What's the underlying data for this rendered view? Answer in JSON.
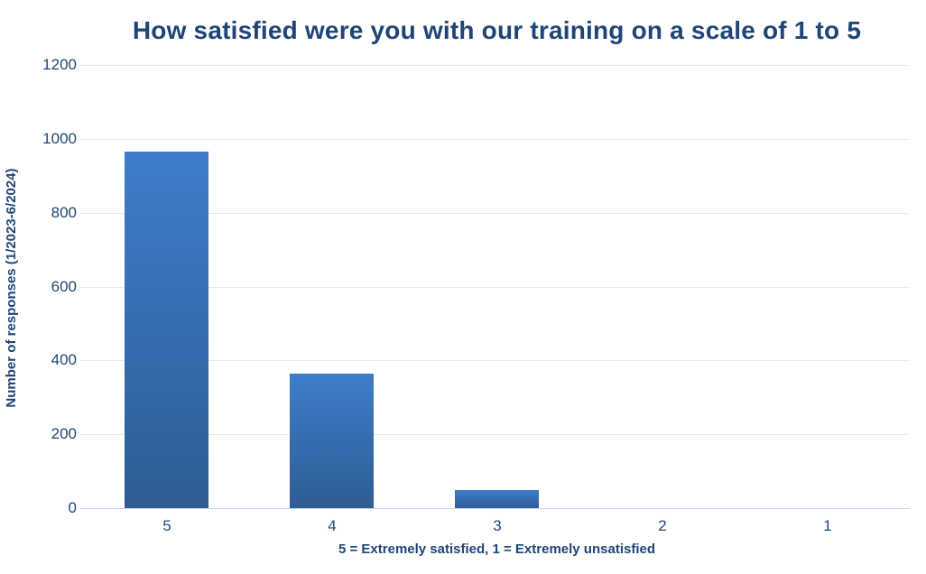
{
  "chart_data": {
    "type": "bar",
    "title": "How satisfied were you with our training on a scale of 1 to 5",
    "categories": [
      "5",
      "4",
      "3",
      "2",
      "1"
    ],
    "values": [
      965,
      365,
      50,
      0,
      0
    ],
    "xlabel": "5 = Extremely satisfied, 1 = Extremely unsatisfied",
    "ylabel": "Number of responses (1/2023-6/2024)",
    "ylim": [
      0,
      1200
    ],
    "yticks": [
      0,
      200,
      400,
      600,
      800,
      1000,
      1200
    ],
    "grid": "horizontal",
    "legend_position": "none",
    "colors": {
      "text": "#1f4577",
      "bar_gradient_top": "#3e7dca",
      "bar_gradient_bottom": "#2e5c95",
      "gridline": "#e3ebf4",
      "axis_line": "#c7d7e9",
      "background": "#ffffff"
    }
  }
}
